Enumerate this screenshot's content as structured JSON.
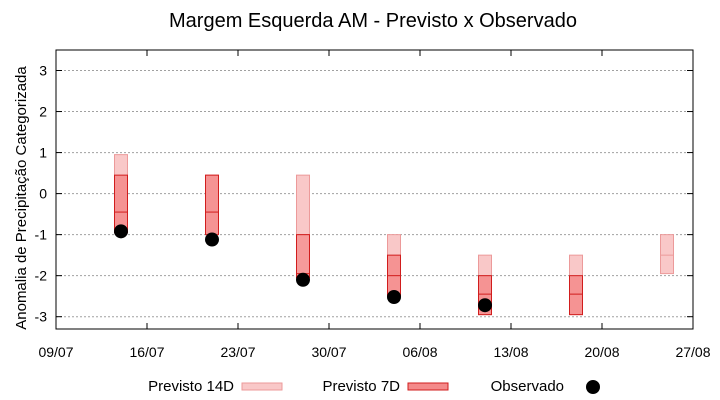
{
  "chart_data": {
    "type": "bar",
    "title": "Margem Esquerda AM - Previsto x Observado",
    "xlabel": "",
    "ylabel": "Anomalia de Precipitação Categorizada",
    "xlim": [
      "2023-07-09",
      "2023-08-27"
    ],
    "ylim": [
      -3.3,
      3.5
    ],
    "x_tick_labels": [
      "09/07",
      "16/07",
      "23/07",
      "30/07",
      "06/08",
      "13/08",
      "20/08",
      "27/08"
    ],
    "y_ticks": [
      -3,
      -2,
      -1,
      0,
      1,
      2,
      3
    ],
    "grid": true,
    "legend_position": "bottom",
    "colors": {
      "previsto_14d_fill": "#f9c8c8",
      "previsto_14d_stroke": "#ec9a9a",
      "previsto_7d_fill": "#f48a8a",
      "previsto_7d_stroke": "#d11d1d",
      "observado": "#000000",
      "grid": "#a0a0a0"
    },
    "series": [
      {
        "name": "Previsto 14D",
        "kind": "range",
        "points": [
          {
            "date": "2023-07-14",
            "low": -0.95,
            "mid": -0.45,
            "high": 0.95
          },
          {
            "date": "2023-07-21",
            "low": -1.0,
            "mid": -0.45,
            "high": 0.45
          },
          {
            "date": "2023-07-28",
            "low": -1.0,
            "mid": -1.0,
            "high": 0.45
          },
          {
            "date": "2023-08-04",
            "low": -2.5,
            "mid": -2.0,
            "high": -1.0
          },
          {
            "date": "2023-08-11",
            "low": -2.95,
            "mid": -2.0,
            "high": -1.5
          },
          {
            "date": "2023-08-18",
            "low": -2.95,
            "mid": -2.45,
            "high": -1.5
          },
          {
            "date": "2023-08-25",
            "low": -1.95,
            "mid": -1.5,
            "high": -1.0
          }
        ]
      },
      {
        "name": "Previsto 7D",
        "kind": "range",
        "points": [
          {
            "date": "2023-07-14",
            "low": -0.95,
            "mid": -0.45,
            "high": 0.45
          },
          {
            "date": "2023-07-21",
            "low": -1.0,
            "mid": -0.45,
            "high": 0.45
          },
          {
            "date": "2023-07-28",
            "low": -2.05,
            "mid": -1.95,
            "high": -1.0
          },
          {
            "date": "2023-08-04",
            "low": -2.5,
            "mid": -2.0,
            "high": -1.5
          },
          {
            "date": "2023-08-11",
            "low": -2.95,
            "mid": -2.45,
            "high": -2.0
          },
          {
            "date": "2023-08-18",
            "low": -2.95,
            "mid": -2.45,
            "high": -2.0
          }
        ]
      },
      {
        "name": "Observado",
        "kind": "scatter",
        "points": [
          {
            "date": "2023-07-14",
            "value": -0.92
          },
          {
            "date": "2023-07-21",
            "value": -1.12
          },
          {
            "date": "2023-07-28",
            "value": -2.1
          },
          {
            "date": "2023-08-04",
            "value": -2.52
          },
          {
            "date": "2023-08-11",
            "value": -2.72
          }
        ]
      }
    ]
  }
}
